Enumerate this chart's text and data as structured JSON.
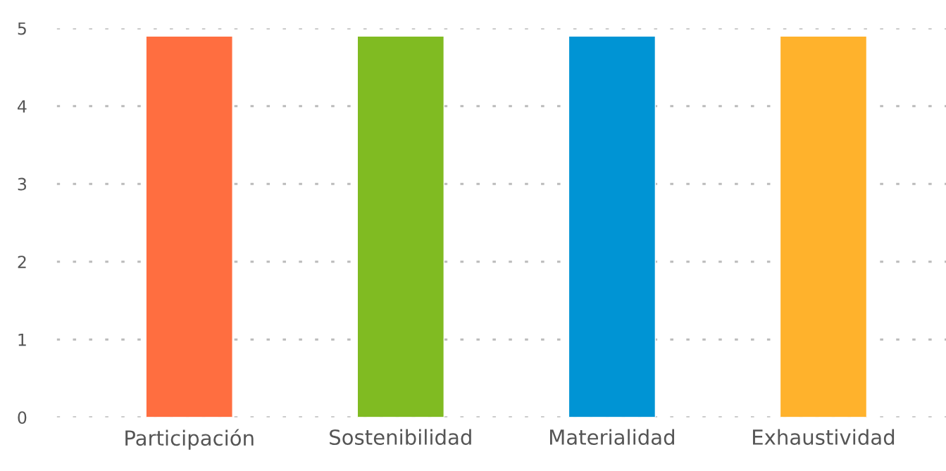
{
  "chart_data": {
    "type": "bar",
    "categories": [
      "Participación",
      "Sostenibilidad",
      "Materialidad",
      "Exhaustividad"
    ],
    "values": [
      4.9,
      4.9,
      4.9,
      4.9
    ],
    "colors": [
      "#ff6e40",
      "#80bb22",
      "#0094d4",
      "#ffb22c"
    ],
    "ylim": [
      0,
      5
    ],
    "yticks": [
      0,
      1,
      2,
      3,
      4,
      5
    ],
    "grid": "y",
    "legend": false
  }
}
